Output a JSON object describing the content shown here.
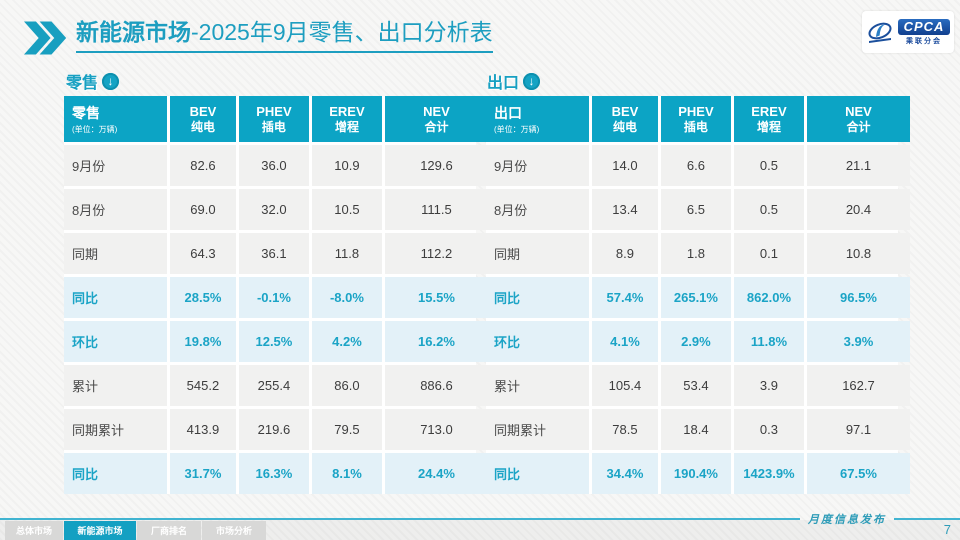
{
  "title": {
    "bold": "新能源市场",
    "rest": "-2025年9月零售、出口分析表"
  },
  "logo": {
    "cpca": "CPCA",
    "subtitle": "乘联分会"
  },
  "watermark": {
    "text": "CPCA"
  },
  "colors": {
    "accent_teal": "#14A3C4",
    "header_bg": "#0CA4C5",
    "title_text": "#1D9EC0",
    "highlight_row_bg": "#E3F1F8",
    "highlight_text": "#1BA4C6",
    "value_text": "#3D3D3D",
    "footer_line": "#41B4D1",
    "tab_inactive_bg": "#D8D8D7",
    "footer_text": "#2E9CB8"
  },
  "tables": [
    {
      "section_label": "零售",
      "corner_label": "零售",
      "unit": "(单位：万辆)",
      "columns": [
        {
          "en": "BEV",
          "zh": "纯电"
        },
        {
          "en": "PHEV",
          "zh": "插电"
        },
        {
          "en": "EREV",
          "zh": "增程"
        },
        {
          "en": "NEV",
          "zh": "合计"
        }
      ],
      "rows": [
        {
          "label": "9月份",
          "values": [
            "82.6",
            "36.0",
            "10.9",
            "129.6"
          ],
          "highlight": false
        },
        {
          "label": "8月份",
          "values": [
            "69.0",
            "32.0",
            "10.5",
            "111.5"
          ],
          "highlight": false
        },
        {
          "label": "同期",
          "values": [
            "64.3",
            "36.1",
            "11.8",
            "112.2"
          ],
          "highlight": false
        },
        {
          "label": "同比",
          "values": [
            "28.5%",
            "-0.1%",
            "-8.0%",
            "15.5%"
          ],
          "highlight": true
        },
        {
          "label": "环比",
          "values": [
            "19.8%",
            "12.5%",
            "4.2%",
            "16.2%"
          ],
          "highlight": true
        },
        {
          "label": "累计",
          "values": [
            "545.2",
            "255.4",
            "86.0",
            "886.6"
          ],
          "highlight": false
        },
        {
          "label": "同期累计",
          "values": [
            "413.9",
            "219.6",
            "79.5",
            "713.0"
          ],
          "highlight": false
        },
        {
          "label": "同比",
          "values": [
            "31.7%",
            "16.3%",
            "8.1%",
            "24.4%"
          ],
          "highlight": true
        }
      ]
    },
    {
      "section_label": "出口",
      "corner_label": "出口",
      "unit": "(单位：万辆)",
      "columns": [
        {
          "en": "BEV",
          "zh": "纯电"
        },
        {
          "en": "PHEV",
          "zh": "插电"
        },
        {
          "en": "EREV",
          "zh": "增程"
        },
        {
          "en": "NEV",
          "zh": "合计"
        }
      ],
      "rows": [
        {
          "label": "9月份",
          "values": [
            "14.0",
            "6.6",
            "0.5",
            "21.1"
          ],
          "highlight": false
        },
        {
          "label": "8月份",
          "values": [
            "13.4",
            "6.5",
            "0.5",
            "20.4"
          ],
          "highlight": false
        },
        {
          "label": "同期",
          "values": [
            "8.9",
            "1.8",
            "0.1",
            "10.8"
          ],
          "highlight": false
        },
        {
          "label": "同比",
          "values": [
            "57.4%",
            "265.1%",
            "862.0%",
            "96.5%"
          ],
          "highlight": true
        },
        {
          "label": "环比",
          "values": [
            "4.1%",
            "2.9%",
            "11.8%",
            "3.9%"
          ],
          "highlight": true
        },
        {
          "label": "累计",
          "values": [
            "105.4",
            "53.4",
            "3.9",
            "162.7"
          ],
          "highlight": false
        },
        {
          "label": "同期累计",
          "values": [
            "78.5",
            "18.4",
            "0.3",
            "97.1"
          ],
          "highlight": false
        },
        {
          "label": "同比",
          "values": [
            "34.4%",
            "190.4%",
            "1423.9%",
            "67.5%"
          ],
          "highlight": true
        }
      ]
    }
  ],
  "footer": {
    "tabs": [
      {
        "label": "总体市场",
        "active": false
      },
      {
        "label": "新能源市场",
        "active": true
      },
      {
        "label": "厂商排名",
        "active": false
      },
      {
        "label": "市场分析",
        "active": false
      }
    ],
    "note": "月度信息发布",
    "page": "7"
  }
}
